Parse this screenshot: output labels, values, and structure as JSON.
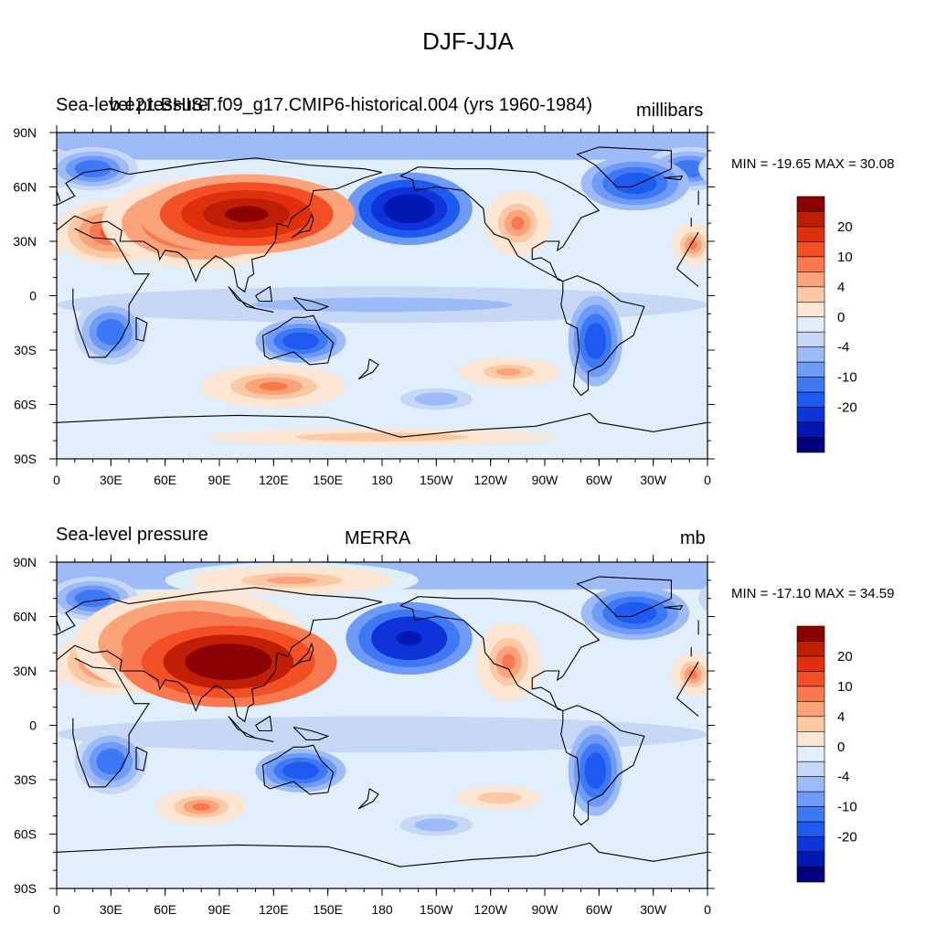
{
  "title": "DJF-JJA",
  "colors": {
    "levels": [
      -25,
      -20,
      -15,
      -10,
      -8,
      -6,
      -4,
      -2,
      0,
      2,
      4,
      6,
      8,
      10,
      15,
      20,
      25
    ],
    "palette": [
      "#00007f",
      "#0017b2",
      "#0d33d9",
      "#1f5af0",
      "#3d79f5",
      "#6e9bf7",
      "#9dbcf7",
      "#c7d8f7",
      "#e1eefc",
      "#fde6d4",
      "#fcc9a5",
      "#fba37b",
      "#f8794f",
      "#f24f24",
      "#e0300b",
      "#bf1e05",
      "#8b0000"
    ],
    "coast": "#000000",
    "frame": "#000000"
  },
  "x_ticks": [
    "0",
    "30E",
    "60E",
    "90E",
    "120E",
    "150E",
    "180",
    "150W",
    "120W",
    "90W",
    "60W",
    "30W",
    "0"
  ],
  "y_ticks": [
    "90N",
    "60N",
    "30N",
    "0",
    "30S",
    "60S",
    "90S"
  ],
  "colorbar_labels": [
    "20",
    "10",
    "4",
    "0",
    "-4",
    "-10",
    "-20"
  ],
  "panels": [
    {
      "left_label": "Sea-level pressure",
      "center_label": "b.e21.BHIST.f09_g17.CMIP6-historical.004 (yrs 1960-1984)",
      "right_label": "millibars",
      "minmax": "MIN = -19.65 MAX =  30.08",
      "blobs": [
        {
          "lon": 105,
          "lat": 45,
          "rx": 60,
          "ry": 22,
          "v": 30
        },
        {
          "lon": 80,
          "lat": 40,
          "rx": 55,
          "ry": 25,
          "v": 15
        },
        {
          "lon": 30,
          "lat": 35,
          "rx": 30,
          "ry": 18,
          "v": 10
        },
        {
          "lon": 195,
          "lat": 48,
          "rx": 35,
          "ry": 20,
          "v": -19
        },
        {
          "lon": 255,
          "lat": 40,
          "rx": 18,
          "ry": 18,
          "v": 8
        },
        {
          "lon": 320,
          "lat": 62,
          "rx": 30,
          "ry": 15,
          "v": -10
        },
        {
          "lon": 350,
          "lat": 70,
          "rx": 25,
          "ry": 12,
          "v": -8
        },
        {
          "lon": 20,
          "lat": 70,
          "rx": 25,
          "ry": 12,
          "v": -8
        },
        {
          "lon": 352,
          "lat": 28,
          "rx": 12,
          "ry": 12,
          "v": 8
        },
        {
          "lon": 135,
          "lat": -25,
          "rx": 25,
          "ry": 12,
          "v": -10
        },
        {
          "lon": 30,
          "lat": -20,
          "rx": 20,
          "ry": 18,
          "v": -8
        },
        {
          "lon": 298,
          "lat": -25,
          "rx": 15,
          "ry": 25,
          "v": -10
        },
        {
          "lon": 120,
          "lat": -50,
          "rx": 40,
          "ry": 12,
          "v": 8
        },
        {
          "lon": 250,
          "lat": -42,
          "rx": 35,
          "ry": 10,
          "v": 6
        },
        {
          "lon": 210,
          "lat": -57,
          "rx": 20,
          "ry": 6,
          "v": -4
        },
        {
          "lon": 180,
          "lat": -78,
          "rx": 120,
          "ry": 6,
          "v": 5
        },
        {
          "lon": 180,
          "lat": -5,
          "rx": 180,
          "ry": 10,
          "v": -3
        }
      ]
    },
    {
      "left_label": "Sea-level pressure",
      "center_label": "MERRA",
      "right_label": "mb",
      "minmax": "MIN = -17.10 MAX =  34.59",
      "blobs": [
        {
          "lon": 95,
          "lat": 35,
          "rx": 60,
          "ry": 25,
          "v": 32
        },
        {
          "lon": 75,
          "lat": 45,
          "rx": 65,
          "ry": 30,
          "v": 15
        },
        {
          "lon": 30,
          "lat": 35,
          "rx": 30,
          "ry": 18,
          "v": 10
        },
        {
          "lon": 195,
          "lat": 48,
          "rx": 35,
          "ry": 20,
          "v": -17
        },
        {
          "lon": 250,
          "lat": 35,
          "rx": 18,
          "ry": 22,
          "v": 8
        },
        {
          "lon": 320,
          "lat": 62,
          "rx": 30,
          "ry": 15,
          "v": -10
        },
        {
          "lon": 20,
          "lat": 70,
          "rx": 25,
          "ry": 12,
          "v": -8
        },
        {
          "lon": 130,
          "lat": 80,
          "rx": 70,
          "ry": 10,
          "v": 6
        },
        {
          "lon": 352,
          "lat": 28,
          "rx": 12,
          "ry": 12,
          "v": 8
        },
        {
          "lon": 135,
          "lat": -25,
          "rx": 25,
          "ry": 12,
          "v": -10
        },
        {
          "lon": 30,
          "lat": -20,
          "rx": 20,
          "ry": 18,
          "v": -8
        },
        {
          "lon": 298,
          "lat": -25,
          "rx": 15,
          "ry": 25,
          "v": -10
        },
        {
          "lon": 80,
          "lat": -45,
          "rx": 25,
          "ry": 10,
          "v": 8
        },
        {
          "lon": 245,
          "lat": -40,
          "rx": 30,
          "ry": 8,
          "v": 5
        },
        {
          "lon": 210,
          "lat": -55,
          "rx": 20,
          "ry": 6,
          "v": -4
        },
        {
          "lon": 180,
          "lat": -5,
          "rx": 180,
          "ry": 10,
          "v": -2
        }
      ]
    }
  ]
}
